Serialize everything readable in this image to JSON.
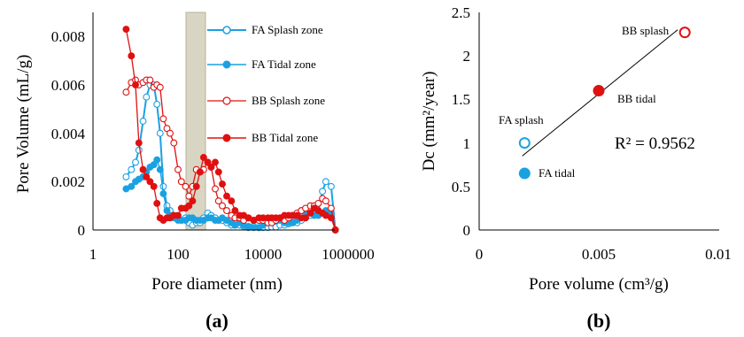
{
  "panel_labels": {
    "a": "(a)",
    "b": "(b)"
  },
  "colors": {
    "fa": "#1ba1e2",
    "bb": "#e01010",
    "band": "#d9d5c3",
    "band_edge": "#b9b39a"
  },
  "chart_data": [
    {
      "type": "line",
      "xlabel": "Pore diameter (nm)",
      "ylabel": "Pore Volume (mL/g)",
      "xscale": "log",
      "xlim": [
        1,
        1000000
      ],
      "ylim": [
        0,
        0.009
      ],
      "xticks": [
        "1",
        "100",
        "10000",
        "1000000"
      ],
      "yticks": [
        "0",
        "0.002",
        "0.004",
        "0.006",
        "0.008"
      ],
      "grid": false,
      "legend": "top-right",
      "highlight_band_x": [
        150,
        400
      ],
      "series": [
        {
          "name": "FA Splash zone",
          "marker": "open-circle",
          "color": "#1ba1e2",
          "x": [
            6,
            8,
            10,
            12,
            15,
            18,
            22,
            27,
            32,
            38,
            45,
            55,
            65,
            80,
            100,
            120,
            150,
            180,
            220,
            270,
            330,
            400,
            500,
            600,
            750,
            900,
            1100,
            1400,
            1800,
            2200,
            2800,
            3500,
            4500,
            6000,
            8000,
            10000,
            13000,
            16000,
            20000,
            25000,
            32000,
            40000,
            50000,
            63000,
            80000,
            100000,
            130000,
            160000,
            200000,
            250000,
            300000,
            400000,
            500000
          ],
          "y": [
            0.0022,
            0.0025,
            0.0028,
            0.0033,
            0.0045,
            0.0055,
            0.006,
            0.006,
            0.0052,
            0.004,
            0.0018,
            0.001,
            0.0008,
            0.0006,
            0.0005,
            0.0004,
            0.0005,
            0.0003,
            0.0002,
            0.0003,
            0.0003,
            0.0005,
            0.0007,
            0.0006,
            0.0005,
            0.0004,
            0.0004,
            0.0003,
            0.0002,
            0.0002,
            0.0002,
            0.00015,
            0.0001,
            0.00015,
            0.0001,
            0.0001,
            0.0001,
            0.00012,
            0.00012,
            0.0002,
            0.0002,
            0.00025,
            0.0003,
            0.0003,
            0.0004,
            0.0005,
            0.0006,
            0.0007,
            0.0008,
            0.0016,
            0.002,
            0.0018,
            0
          ]
        },
        {
          "name": "FA Tidal zone",
          "marker": "filled-circle",
          "color": "#1ba1e2",
          "x": [
            6,
            8,
            10,
            12,
            15,
            18,
            22,
            27,
            32,
            38,
            45,
            55,
            65,
            80,
            100,
            120,
            150,
            180,
            220,
            270,
            330,
            400,
            500,
            600,
            750,
            900,
            1100,
            1400,
            1800,
            2200,
            2800,
            3500,
            4500,
            6000,
            8000,
            10000,
            13000,
            16000,
            20000,
            25000,
            32000,
            40000,
            50000,
            63000,
            80000,
            100000,
            130000,
            160000,
            200000,
            250000,
            300000,
            400000,
            500000
          ],
          "y": [
            0.0017,
            0.0018,
            0.002,
            0.0021,
            0.0022,
            0.0024,
            0.0026,
            0.0027,
            0.0029,
            0.0025,
            0.0015,
            0.0008,
            0.0006,
            0.0005,
            0.0004,
            0.0004,
            0.0004,
            0.0005,
            0.0005,
            0.0004,
            0.0004,
            0.0004,
            0.0005,
            0.0005,
            0.0004,
            0.0004,
            0.0005,
            0.0004,
            0.0003,
            0.0002,
            0.0003,
            0.0002,
            0.00015,
            0.0001,
            0.0001,
            0.0002,
            0.0003,
            0.0003,
            0.0004,
            0.0004,
            0.0003,
            0.0003,
            0.0003,
            0.0004,
            0.0008,
            0.0007,
            0.0007,
            0.0006,
            0.0006,
            0.0007,
            0.0008,
            0.0007,
            0
          ]
        },
        {
          "name": "BB Splash zone",
          "marker": "open-circle",
          "color": "#e01010",
          "x": [
            6,
            8,
            10,
            12,
            15,
            18,
            22,
            27,
            32,
            38,
            45,
            55,
            65,
            80,
            100,
            120,
            150,
            180,
            220,
            270,
            330,
            400,
            500,
            600,
            750,
            900,
            1100,
            1400,
            1800,
            2200,
            2800,
            3500,
            4500,
            6000,
            8000,
            10000,
            13000,
            16000,
            20000,
            25000,
            32000,
            40000,
            50000,
            63000,
            80000,
            100000,
            130000,
            160000,
            200000,
            250000,
            300000,
            400000,
            500000
          ],
          "y": [
            0.0057,
            0.0061,
            0.0062,
            0.006,
            0.0061,
            0.0062,
            0.0062,
            0.0059,
            0.006,
            0.0059,
            0.0046,
            0.0042,
            0.004,
            0.0036,
            0.0025,
            0.002,
            0.0018,
            0.0014,
            0.0018,
            0.0025,
            0.0024,
            0.0025,
            0.0028,
            0.0026,
            0.0017,
            0.0012,
            0.001,
            0.0008,
            0.0006,
            0.0005,
            0.0005,
            0.0004,
            0.0005,
            0.0004,
            0.0004,
            0.0004,
            0.0003,
            0.0003,
            0.0004,
            0.0005,
            0.0004,
            0.0005,
            0.0006,
            0.0007,
            0.0008,
            0.0009,
            0.001,
            0.001,
            0.0011,
            0.0013,
            0.0012,
            0.0009,
            0
          ]
        },
        {
          "name": "BB Tidal zone",
          "marker": "filled-circle",
          "color": "#e01010",
          "x": [
            6,
            8,
            10,
            12,
            15,
            18,
            22,
            27,
            32,
            38,
            45,
            55,
            65,
            80,
            100,
            120,
            150,
            180,
            220,
            270,
            330,
            400,
            500,
            600,
            750,
            900,
            1100,
            1400,
            1800,
            2200,
            2800,
            3500,
            4500,
            6000,
            8000,
            10000,
            13000,
            16000,
            20000,
            25000,
            32000,
            40000,
            50000,
            63000,
            80000,
            100000,
            130000,
            160000,
            200000,
            250000,
            300000,
            400000,
            500000
          ],
          "y": [
            0.0083,
            0.0072,
            0.006,
            0.0036,
            0.0025,
            0.0022,
            0.002,
            0.0018,
            0.0011,
            0.0005,
            0.0004,
            0.0005,
            0.0005,
            0.0006,
            0.0006,
            0.0009,
            0.0009,
            0.001,
            0.0012,
            0.0018,
            0.0024,
            0.003,
            0.0028,
            0.0026,
            0.0028,
            0.0024,
            0.0019,
            0.0014,
            0.0012,
            0.0008,
            0.0006,
            0.0006,
            0.0005,
            0.0004,
            0.0005,
            0.0005,
            0.0005,
            0.0005,
            0.0005,
            0.0005,
            0.0006,
            0.0006,
            0.0006,
            0.0006,
            0.0005,
            0.0005,
            0.0007,
            0.0009,
            0.0008,
            0.0007,
            0.0006,
            0.0005,
            0
          ]
        }
      ]
    },
    {
      "type": "scatter",
      "xlabel": "Pore volume (cm³/g)",
      "ylabel": "Dc (mm²/year)",
      "xlim": [
        0,
        0.01
      ],
      "ylim": [
        0,
        2.5
      ],
      "xticks": [
        "0",
        "0.005",
        "0.01"
      ],
      "yticks": [
        "0",
        "0.5",
        "1",
        "1.5",
        "2",
        "2.5"
      ],
      "grid": false,
      "points": [
        {
          "label": "FA splash",
          "x": 0.0019,
          "y": 1.0,
          "marker": "open-circle",
          "color": "#1ba1e2"
        },
        {
          "label": "FA tidal",
          "x": 0.0019,
          "y": 0.65,
          "marker": "filled-circle",
          "color": "#1ba1e2"
        },
        {
          "label": "BB splash",
          "x": 0.0086,
          "y": 2.27,
          "marker": "open-circle",
          "color": "#e01010"
        },
        {
          "label": "BB tidal",
          "x": 0.005,
          "y": 1.6,
          "marker": "filled-circle",
          "color": "#e01010"
        }
      ],
      "trendline": {
        "x": [
          0.0018,
          0.0083
        ],
        "y": [
          0.85,
          2.3
        ]
      },
      "annotation": "R² = 0.9562"
    }
  ]
}
